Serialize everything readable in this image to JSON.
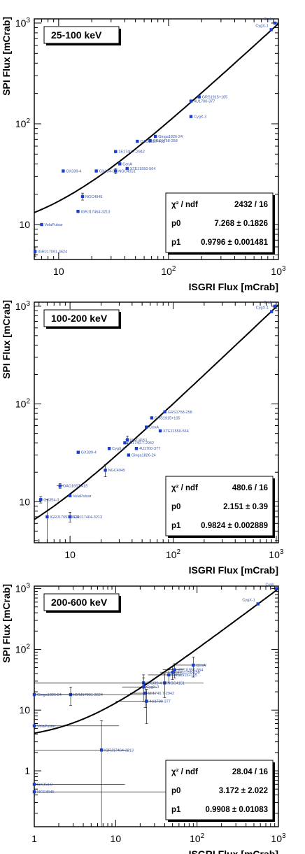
{
  "chart_data": [
    {
      "type": "scatter",
      "title": "25-100 keV",
      "xlabel": "ISGRI Flux [mCrab]",
      "ylabel": "SPI Flux [mCrab]",
      "xscale": "log",
      "yscale": "log",
      "xlim": [
        6,
        1000
      ],
      "ylim": [
        4.5,
        1100
      ],
      "x_ticklabels": [
        "10",
        "10^2",
        "10^3"
      ],
      "y_ticklabels": [
        "10",
        "10^2",
        "10^3"
      ],
      "stats": [
        {
          "label": "χ² / ndf",
          "value": "2432 / 16"
        },
        {
          "label": "p0",
          "value": "7.268 ± 0.1826"
        },
        {
          "label": "p1",
          "value": "0.9796 ± 0.001481"
        }
      ],
      "fit": {
        "p0": 7.268,
        "p1": 0.9796
      },
      "points": [
        {
          "name": "Crab",
          "x": 930,
          "y": 1000,
          "xerr": 0,
          "yerr": 0
        },
        {
          "name": "CygX-1",
          "x": 860,
          "y": 860,
          "xerr": 0,
          "yerr": 0
        },
        {
          "name": "4U1700-377",
          "x": 160,
          "y": 168,
          "xerr": 0,
          "yerr": 0
        },
        {
          "name": "GRS1915+105",
          "x": 190,
          "y": 185,
          "xerr": 0,
          "yerr": 0
        },
        {
          "name": "CygX-3",
          "x": 160,
          "y": 118,
          "xerr": 0,
          "yerr": 0
        },
        {
          "name": "Ginga1826-24",
          "x": 76,
          "y": 75,
          "xerr": 0,
          "yerr": 0
        },
        {
          "name": "GRS1758-258",
          "x": 68,
          "y": 68,
          "xerr": 0,
          "yerr": 0
        },
        {
          "name": "OAO1657-415",
          "x": 52,
          "y": 67,
          "xerr": 0,
          "yerr": 0
        },
        {
          "name": "1E1740.7-2942",
          "x": 33,
          "y": 53,
          "xerr": 0,
          "yerr": 0
        },
        {
          "name": "CenA",
          "x": 36,
          "y": 40,
          "xerr": 0,
          "yerr": 0
        },
        {
          "name": "XTEJ1550-564",
          "x": 42,
          "y": 36,
          "xerr": 0,
          "yerr": 0
        },
        {
          "name": "GX354-0",
          "x": 22,
          "y": 34,
          "xerr": 0,
          "yerr": 0
        },
        {
          "name": "NGC4151",
          "x": 33,
          "y": 34,
          "xerr": 0,
          "yerr": 2
        },
        {
          "name": "GX339-4",
          "x": 11,
          "y": 34,
          "xerr": 0,
          "yerr": 0
        },
        {
          "name": "NGC4945",
          "x": 16.5,
          "y": 19,
          "xerr": 0.4,
          "yerr": 1.5
        },
        {
          "name": "IGRJ17464-3213",
          "x": 15,
          "y": 13.5,
          "xerr": 0,
          "yerr": 0
        },
        {
          "name": "VelaPulsar",
          "x": 7,
          "y": 10,
          "xerr": 0,
          "yerr": 0
        },
        {
          "name": "IGRJ17091-3624",
          "x": 6.1,
          "y": 5.4,
          "xerr": 0,
          "yerr": 0.6
        }
      ]
    },
    {
      "type": "scatter",
      "title": "100-200 keV",
      "xlabel": "ISGRI Flux [mCrab]",
      "ylabel": "SPI Flux [mCrab]",
      "xscale": "log",
      "yscale": "log",
      "xlim": [
        4.5,
        1050
      ],
      "ylim": [
        3.8,
        1100
      ],
      "x_ticklabels": [
        "10",
        "10^2",
        "10^3"
      ],
      "y_ticklabels": [
        "10",
        "10^2",
        "10^3"
      ],
      "stats": [
        {
          "label": "χ² / ndf",
          "value": "480.6 / 16"
        },
        {
          "label": "p0",
          "value": "2.151 ± 0.39"
        },
        {
          "label": "p1",
          "value": "0.9824 ± 0.002889"
        }
      ],
      "fit": {
        "p0": 2.151,
        "p1": 0.9824
      },
      "points": [
        {
          "name": "Crab",
          "x": 970,
          "y": 1000,
          "xerr": 0,
          "yerr": 0
        },
        {
          "name": "CygX-1",
          "x": 900,
          "y": 880,
          "xerr": 0,
          "yerr": 0
        },
        {
          "name": "GRS1758-258",
          "x": 83,
          "y": 83,
          "xerr": 0,
          "yerr": 0
        },
        {
          "name": "GRS1915+105",
          "x": 62,
          "y": 72,
          "xerr": 0,
          "yerr": 0
        },
        {
          "name": "CenA",
          "x": 55,
          "y": 58,
          "xerr": 0,
          "yerr": 0
        },
        {
          "name": "XTEJ1550-564",
          "x": 75,
          "y": 53,
          "xerr": 0,
          "yerr": 0
        },
        {
          "name": "NGC4151",
          "x": 36,
          "y": 43,
          "xerr": 1.5,
          "yerr": 4
        },
        {
          "name": "1E1740.7-2942",
          "x": 34,
          "y": 40,
          "xerr": 0,
          "yerr": 0
        },
        {
          "name": "CygX-3",
          "x": 24,
          "y": 35,
          "xerr": 0,
          "yerr": 0
        },
        {
          "name": "4U1700-377",
          "x": 44,
          "y": 35,
          "xerr": 0,
          "yerr": 0
        },
        {
          "name": "Ginga1826-24",
          "x": 37,
          "y": 30,
          "xerr": 0,
          "yerr": 0
        },
        {
          "name": "GX339-4",
          "x": 12,
          "y": 32,
          "xerr": 0,
          "yerr": 0
        },
        {
          "name": "NGC4945",
          "x": 22,
          "y": 21,
          "xerr": 0,
          "yerr": 3
        },
        {
          "name": "OAO1657-415",
          "x": 8,
          "y": 14.5,
          "xerr": 0.6,
          "yerr": 0.8
        },
        {
          "name": "VelaPulsar",
          "x": 10,
          "y": 11.5,
          "xerr": 0,
          "yerr": 0
        },
        {
          "name": "GX354-0",
          "x": 5.2,
          "y": 10.5,
          "xerr": 0.2,
          "yerr": 0.8
        },
        {
          "name": "IGRJ17464-3213",
          "x": 10,
          "y": 7,
          "xerr": 0,
          "yerr": 0.8
        },
        {
          "name": "IGRJ17091-3624",
          "x": 6,
          "y": 7,
          "xerr": 0,
          "yerr": 3.5
        }
      ]
    },
    {
      "type": "scatter",
      "title": "200-600 keV",
      "xlabel": "ISGRI Flux [mCrab]",
      "ylabel": "SPI Flux [mCrab]",
      "xscale": "log",
      "yscale": "log",
      "xlim": [
        1,
        1000
      ],
      "ylim": [
        0.12,
        1100
      ],
      "x_ticklabels": [
        "1",
        "10",
        "10^2",
        "10^3"
      ],
      "y_ticklabels": [
        "1",
        "10",
        "10^2",
        "10^3"
      ],
      "stats": [
        {
          "label": "χ² / ndf",
          "value": "28.04 / 16"
        },
        {
          "label": "p0",
          "value": "3.172 ± 2.022"
        },
        {
          "label": "p1",
          "value": "0.9908 ± 0.01083"
        }
      ],
      "fit": {
        "p0": 3.172,
        "p1": 0.9908
      },
      "points": [
        {
          "name": "Crab",
          "x": 950,
          "y": 1000,
          "xerr": 0,
          "yerr": 0
        },
        {
          "name": "CygX-1",
          "x": 560,
          "y": 560,
          "xerr": 0,
          "yerr": 0
        },
        {
          "name": "CenA",
          "x": 90,
          "y": 55,
          "xerr": 40,
          "yerr": 20
        },
        {
          "name": "XTEJ1550-564",
          "x": 53,
          "y": 46,
          "xerr": 15,
          "yerr": 12
        },
        {
          "name": "GRS1758-258",
          "x": 50,
          "y": 42,
          "xerr": 15,
          "yerr": 10
        },
        {
          "name": "GRS1915+105",
          "x": 45,
          "y": 38,
          "xerr": 20,
          "yerr": 10
        },
        {
          "name": "NGC4151",
          "x": 40,
          "y": 28,
          "xerr": 80,
          "yerr": 12
        },
        {
          "name": "GX339-4",
          "x": 22,
          "y": 28,
          "xerr": 21,
          "yerr": 10
        },
        {
          "name": "CygX-3",
          "x": 22,
          "y": 24,
          "xerr": 10,
          "yerr": 10
        },
        {
          "name": "1E1740.7-2942",
          "x": 23,
          "y": 19,
          "xerr": 8,
          "yerr": 8
        },
        {
          "name": "4U1700-377",
          "x": 24,
          "y": 14,
          "xerr": 14,
          "yerr": 8
        },
        {
          "name": "IGRJ17091-3624",
          "x": 2.8,
          "y": 18,
          "xerr": 2,
          "yerr": 6
        },
        {
          "name": "Ginga1826-24",
          "x": 1,
          "y": 18,
          "xerr": 20,
          "yerr": 0
        },
        {
          "name": "VelaPulsar",
          "x": 1,
          "y": 5.5,
          "xerr": 10,
          "yerr": 0
        },
        {
          "name": "IGRJ17464-3213",
          "x": 6.7,
          "y": 2.2,
          "xerr": 8,
          "yerr": 4.5
        },
        {
          "name": "GX354-0",
          "x": 1,
          "y": 0.6,
          "xerr": 12,
          "yerr": 0
        },
        {
          "name": "NGC4945",
          "x": 1,
          "y": 0.45,
          "xerr": 50,
          "yerr": 0
        }
      ]
    }
  ]
}
